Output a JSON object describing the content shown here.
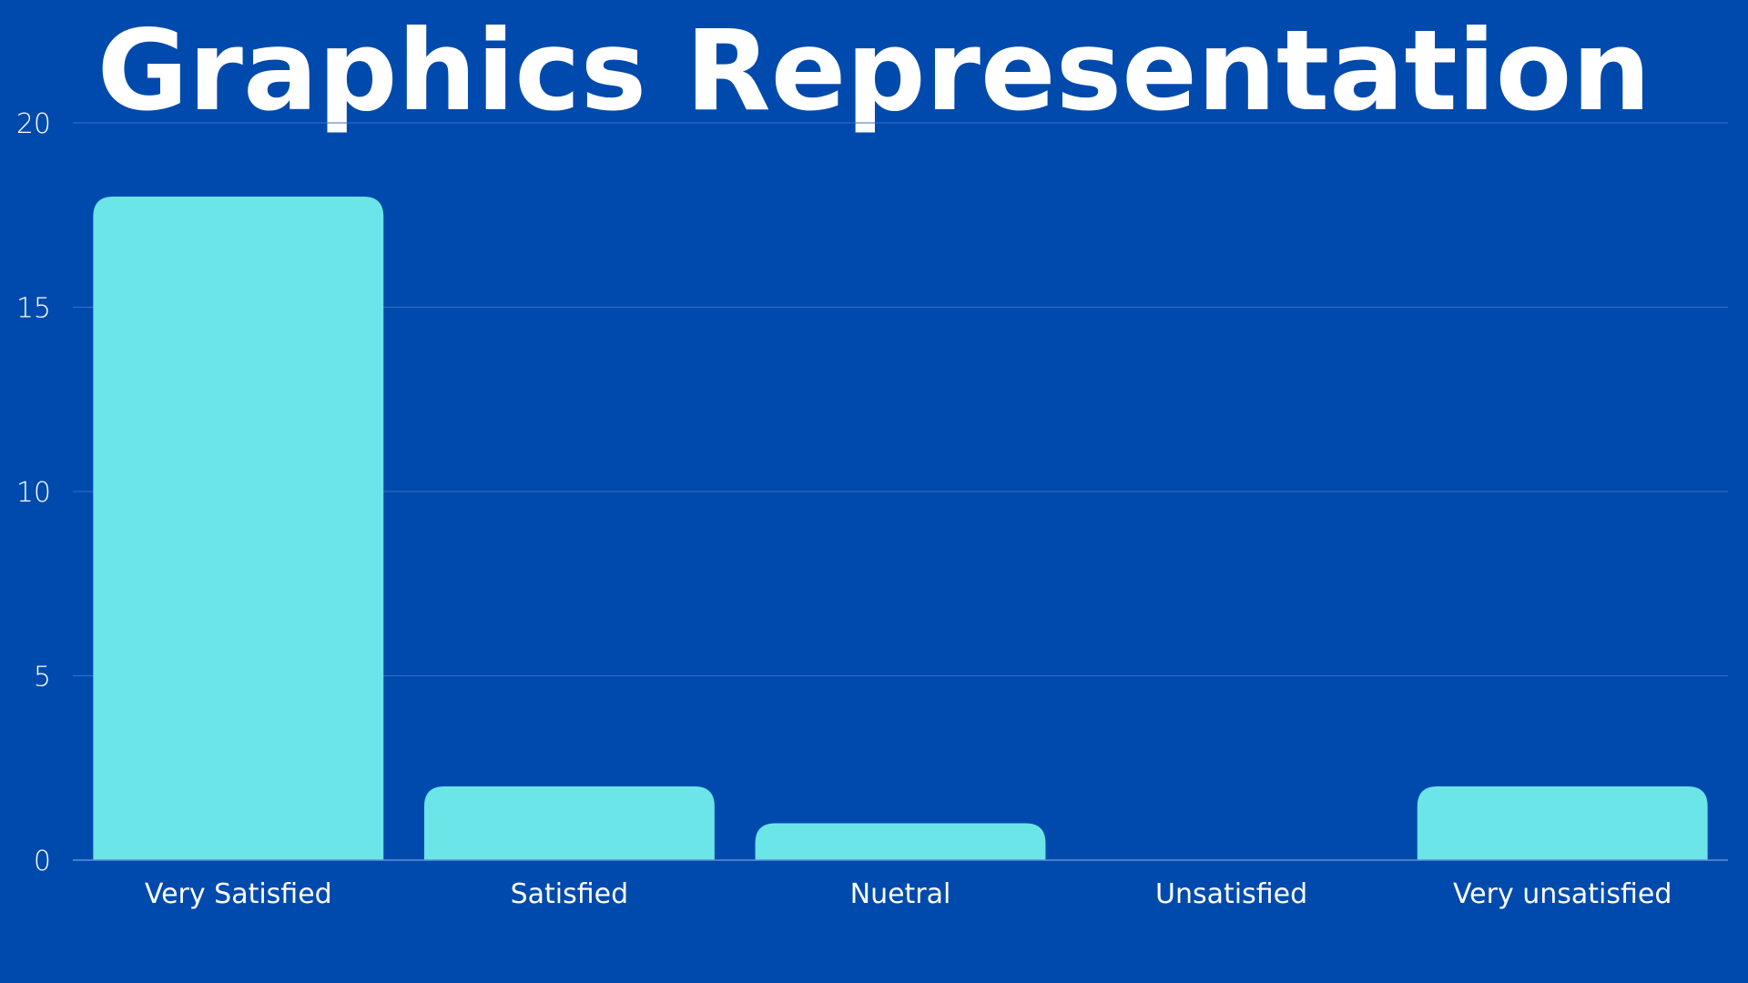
{
  "chart_data": {
    "type": "bar",
    "title": "Graphics Representation",
    "categories": [
      "Very Satisfied",
      "Satisfied",
      "Nuetral",
      "Unsatisfied",
      "Very unsatisfied"
    ],
    "values": [
      18,
      2,
      1,
      0,
      2
    ],
    "xlabel": "",
    "ylabel": "",
    "ylim": [
      0,
      20
    ],
    "yticks": [
      0,
      5,
      10,
      15,
      20
    ],
    "grid": true,
    "legend": "none",
    "colors": {
      "background": "#004aad",
      "bar": "#6ce5e8",
      "text": "#ffffff",
      "grid": "#3a6fc4"
    }
  }
}
